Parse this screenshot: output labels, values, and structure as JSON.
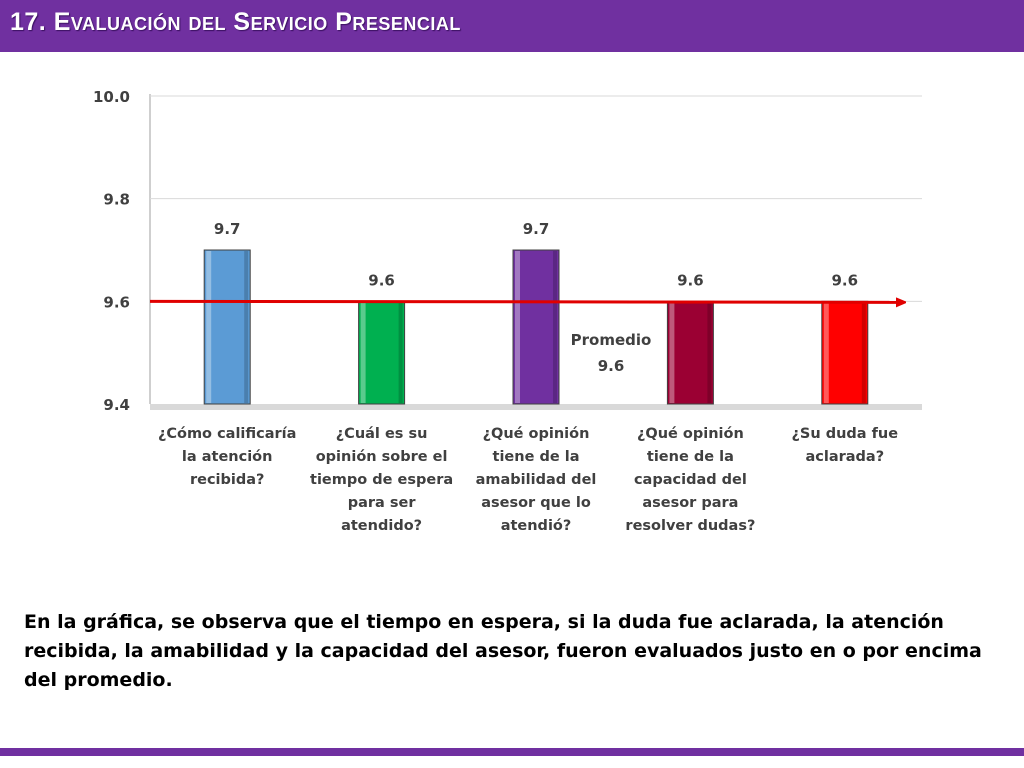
{
  "slide": {
    "title": "17. Evaluación del Servicio Presencial",
    "caption": "En la gráfica, se observa que el tiempo en espera, si la duda fue aclarada, la atención recibida, la amabilidad y la capacidad del asesor, fueron evaluados justo en o por encima del promedio."
  },
  "colors": {
    "title_bar": "#7030a0",
    "average_line": "#e00000"
  },
  "chart_data": {
    "type": "bar",
    "categories": [
      [
        "¿Cómo calificaría",
        "la atención",
        "recibida?"
      ],
      [
        "¿Cuál es su",
        "opinión sobre el",
        "tiempo de espera",
        "para ser",
        "atendido?"
      ],
      [
        "¿Qué opinión",
        "tiene de la",
        "amabilidad del",
        "asesor que lo",
        "atendió?"
      ],
      [
        "¿Qué opinión",
        "tiene de la",
        "capacidad del",
        "asesor para",
        "resolver dudas?"
      ],
      [
        "¿Su duda fue",
        "aclarada?"
      ]
    ],
    "values": [
      9.7,
      9.6,
      9.7,
      9.6,
      9.6
    ],
    "data_labels": [
      "9.7",
      "9.6",
      "9.7",
      "9.6",
      "9.6"
    ],
    "bar_colors": [
      "#5b9bd5",
      "#00b050",
      "#7030a0",
      "#9b0033",
      "#ff0000"
    ],
    "ylim": [
      9.4,
      10.0
    ],
    "yticks": [
      "10.0",
      "9.8",
      "9.6",
      "9.4"
    ],
    "ytick_values": [
      10.0,
      9.8,
      9.6,
      9.4
    ],
    "average": {
      "value": 9.6,
      "label_lines": [
        "Promedio",
        "9.6"
      ]
    },
    "grid": "horizontal"
  }
}
